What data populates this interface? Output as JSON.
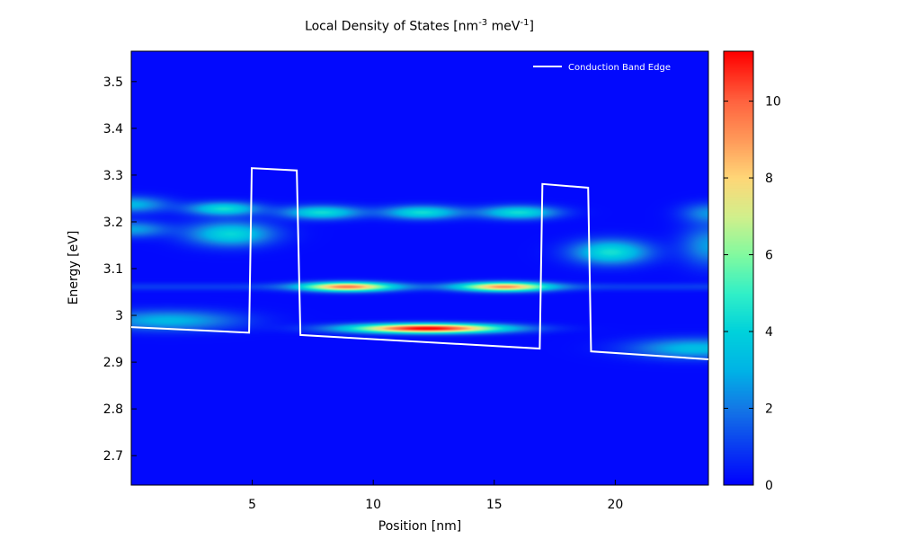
{
  "chart_data": {
    "type": "heatmap",
    "title": {
      "main": "Local Density of States [nm",
      "sup1": "-3",
      "mid": " meV",
      "sup2": "-1",
      "end": "]"
    },
    "xlabel": "Position [nm]",
    "ylabel": "Energy [eV]",
    "xlim": [
      0,
      23.85
    ],
    "ylim": [
      2.637,
      3.565
    ],
    "xticks": [
      "5",
      "10",
      "15",
      "20"
    ],
    "yticks": [
      "2.7",
      "2.8",
      "2.9",
      "3",
      "3.1",
      "3.2",
      "3.3",
      "3.4",
      "3.5"
    ],
    "colorbar": {
      "range": [
        0,
        11.3
      ],
      "ticks": [
        "0",
        "2",
        "4",
        "6",
        "8",
        "10"
      ]
    },
    "colormap_stops": [
      [
        0,
        "#0000ff"
      ],
      [
        1,
        "#0a3cf2"
      ],
      [
        2,
        "#1478e6"
      ],
      [
        3,
        "#00b4e6"
      ],
      [
        4,
        "#00d2dc"
      ],
      [
        5,
        "#32f0c8"
      ],
      [
        6,
        "#82faa0"
      ],
      [
        7,
        "#d2f08c"
      ],
      [
        8,
        "#ffd778"
      ],
      [
        9,
        "#ff9a5a"
      ],
      [
        10,
        "#ff6440"
      ],
      [
        11.3,
        "#ff0000"
      ]
    ],
    "peaks": [
      {
        "x": 12.2,
        "energy": 2.973,
        "value": 11.3,
        "sx": 2.2,
        "sy": 0.007
      },
      {
        "x": 8.9,
        "energy": 3.062,
        "value": 8.6,
        "sx": 1.3,
        "sy": 0.007
      },
      {
        "x": 15.4,
        "energy": 3.062,
        "value": 8.2,
        "sx": 1.3,
        "sy": 0.007
      },
      {
        "x": 3.8,
        "energy": 3.229,
        "value": 4.2,
        "sx": 1.0,
        "sy": 0.01
      },
      {
        "x": 4.1,
        "energy": 3.175,
        "value": 4.0,
        "sx": 1.2,
        "sy": 0.018
      },
      {
        "x": 7.85,
        "energy": 3.221,
        "value": 4.2,
        "sx": 1.1,
        "sy": 0.01
      },
      {
        "x": 12.0,
        "energy": 3.221,
        "value": 4.2,
        "sx": 1.1,
        "sy": 0.01
      },
      {
        "x": 16.0,
        "energy": 3.221,
        "value": 4.2,
        "sx": 1.1,
        "sy": 0.01
      },
      {
        "x": 19.8,
        "energy": 3.136,
        "value": 4.3,
        "sx": 1.1,
        "sy": 0.018
      },
      {
        "x": 0.0,
        "energy": 3.238,
        "value": 3.0,
        "sx": 1.0,
        "sy": 0.012
      },
      {
        "x": 0.0,
        "energy": 3.185,
        "value": 2.6,
        "sx": 1.0,
        "sy": 0.012
      },
      {
        "x": 1.5,
        "energy": 2.99,
        "value": 3.0,
        "sx": 2.0,
        "sy": 0.015
      },
      {
        "x": 23.3,
        "energy": 2.93,
        "value": 3.2,
        "sx": 1.8,
        "sy": 0.015
      },
      {
        "x": 23.9,
        "energy": 3.15,
        "value": 2.5,
        "sx": 0.8,
        "sy": 0.03
      },
      {
        "x": 23.9,
        "energy": 3.22,
        "value": 2.2,
        "sx": 0.8,
        "sy": 0.015
      }
    ],
    "series": [
      {
        "name": "Conduction Band Edge",
        "color": "#ffffff",
        "x": [
          0,
          4.87,
          4.98,
          6.84,
          6.99,
          16.88,
          16.99,
          18.88,
          19.0,
          23.85
        ],
        "y": [
          2.975,
          2.963,
          3.315,
          3.31,
          2.958,
          2.929,
          3.281,
          3.273,
          2.923,
          2.906
        ]
      }
    ],
    "legend": {
      "position": "top-right",
      "label": "Conduction Band Edge"
    },
    "grid": false
  }
}
